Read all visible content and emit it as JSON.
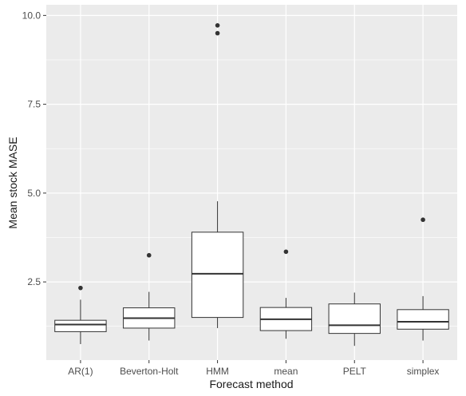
{
  "chart_data": {
    "type": "boxplot",
    "title": "",
    "xlabel": "Forecast method",
    "ylabel": "Mean stock MASE",
    "categories": [
      "AR(1)",
      "Beverton-Holt",
      "HMM",
      "mean",
      "PELT",
      "simplex"
    ],
    "y_ticks": [
      2.5,
      5.0,
      7.5,
      10.0
    ],
    "y_tick_labels": [
      "2.5",
      "5.0",
      "7.5",
      "10.0"
    ],
    "ylim": [
      0.3,
      10.3
    ],
    "grid": true,
    "legend": "none",
    "colors": {
      "panel_background": "#ebebeb",
      "grid_major": "#ffffff",
      "box_fill": "#ffffff",
      "box_stroke": "#333333",
      "outlier": "#333333",
      "tick_text": "#4d4d4d",
      "axis_title": "#1a1a1a"
    },
    "boxes": [
      {
        "category": "AR(1)",
        "whisker_low": 0.75,
        "q1": 1.1,
        "median": 1.3,
        "q3": 1.42,
        "whisker_high": 2.0,
        "outliers": [
          2.33
        ]
      },
      {
        "category": "Beverton-Holt",
        "whisker_low": 0.85,
        "q1": 1.2,
        "median": 1.48,
        "q3": 1.77,
        "whisker_high": 2.22,
        "outliers": [
          3.25
        ]
      },
      {
        "category": "HMM",
        "whisker_low": 1.2,
        "q1": 1.5,
        "median": 2.73,
        "q3": 3.9,
        "whisker_high": 4.77,
        "outliers": [
          9.5,
          9.72
        ]
      },
      {
        "category": "mean",
        "whisker_low": 0.9,
        "q1": 1.13,
        "median": 1.45,
        "q3": 1.78,
        "whisker_high": 2.05,
        "outliers": [
          3.35
        ]
      },
      {
        "category": "PELT",
        "whisker_low": 0.7,
        "q1": 1.05,
        "median": 1.28,
        "q3": 1.88,
        "whisker_high": 2.2,
        "outliers": []
      },
      {
        "category": "simplex",
        "whisker_low": 0.85,
        "q1": 1.17,
        "median": 1.38,
        "q3": 1.72,
        "whisker_high": 2.1,
        "outliers": [
          4.25
        ]
      }
    ]
  }
}
